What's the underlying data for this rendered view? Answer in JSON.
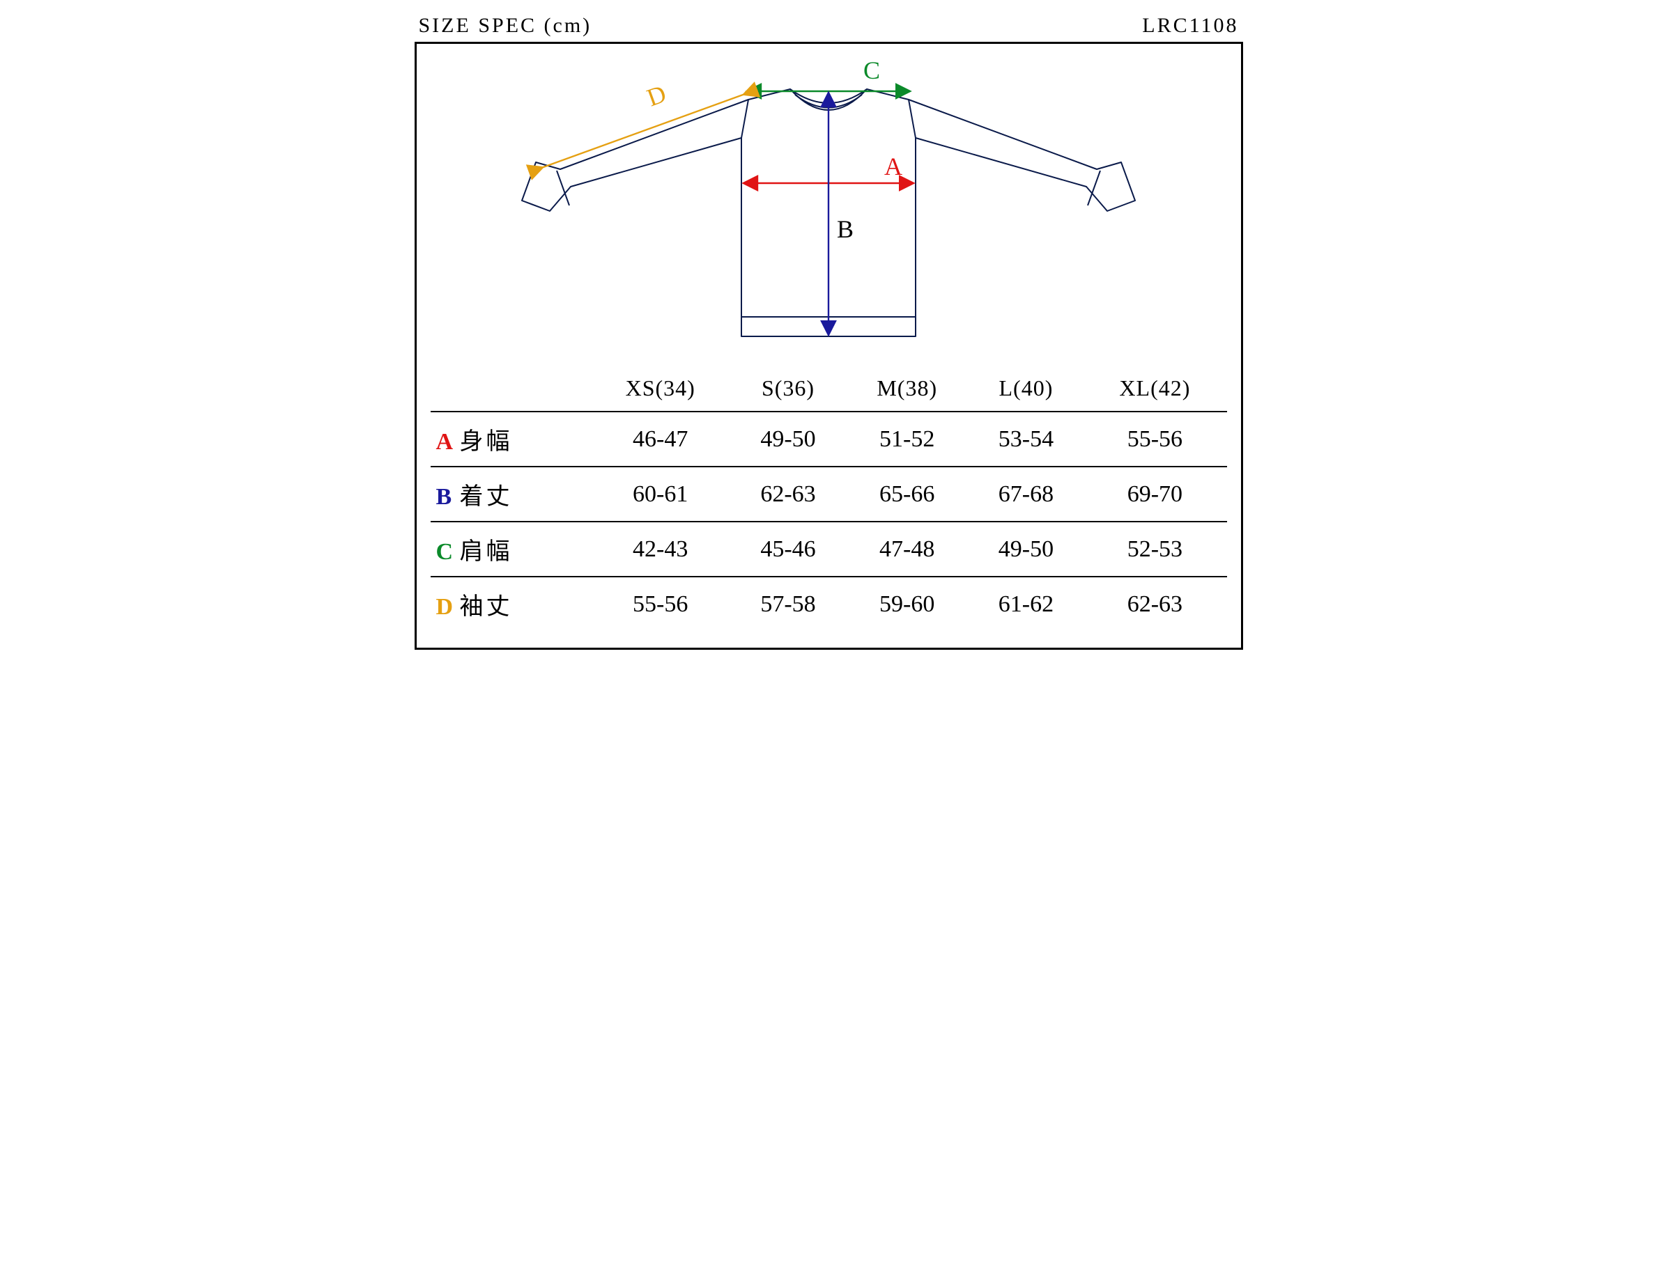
{
  "header": {
    "title": "SIZE SPEC (cm)",
    "code": "LRC1108"
  },
  "colors": {
    "A": "#e01414",
    "B": "#1a1a9c",
    "C": "#0b8a2a",
    "D": "#e5a012",
    "outline": "#0a1a4a",
    "border": "#000000",
    "text": "#000000",
    "background": "#ffffff"
  },
  "diagram": {
    "labels": {
      "A": "A",
      "B": "B",
      "C": "C",
      "D": "D"
    },
    "line_width_garment": 2.0,
    "line_width_dim": 2.4,
    "label_fontsize": 36
  },
  "table": {
    "columns": [
      "XS(34)",
      "S(36)",
      "M(38)",
      "L(40)",
      "XL(42)"
    ],
    "rows": [
      {
        "key": "A",
        "label_jp": "身幅",
        "values": [
          "46-47",
          "49-50",
          "51-52",
          "53-54",
          "55-56"
        ]
      },
      {
        "key": "B",
        "label_jp": "着丈",
        "values": [
          "60-61",
          "62-63",
          "65-66",
          "67-68",
          "69-70"
        ]
      },
      {
        "key": "C",
        "label_jp": "肩幅",
        "values": [
          "42-43",
          "45-46",
          "47-48",
          "49-50",
          "52-53"
        ]
      },
      {
        "key": "D",
        "label_jp": "袖丈",
        "values": [
          "55-56",
          "57-58",
          "59-60",
          "61-62",
          "62-63"
        ]
      }
    ]
  }
}
